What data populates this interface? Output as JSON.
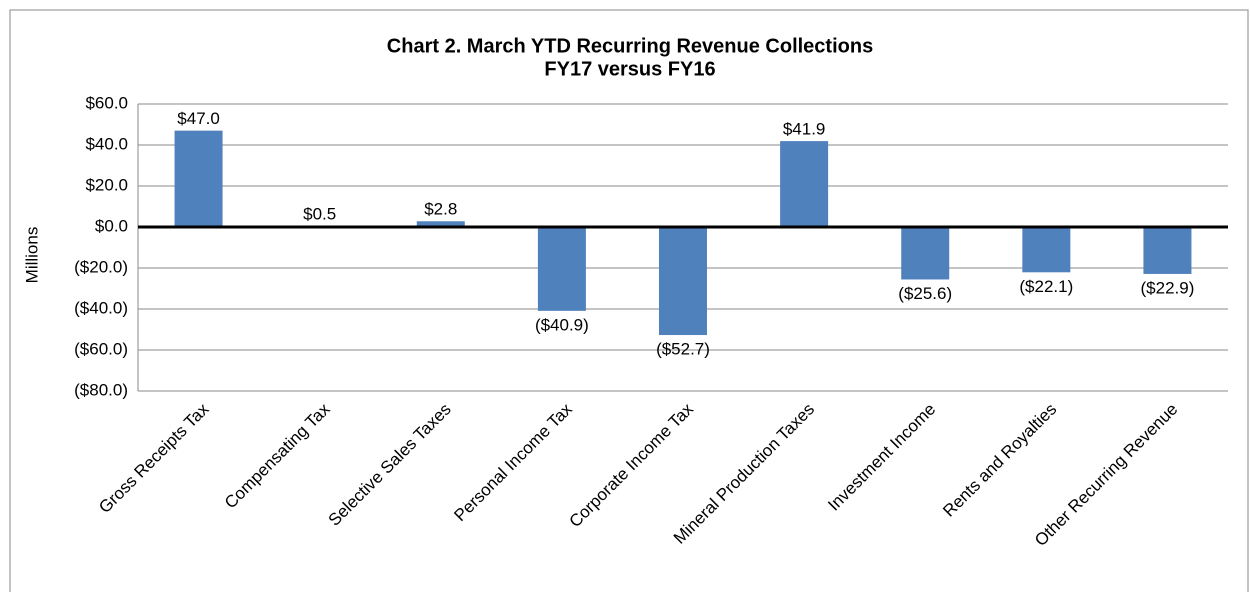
{
  "chart_data": {
    "type": "bar",
    "title": "Chart 2. March YTD Recurring Revenue  Collections",
    "subtitle": "FY17 versus FY16",
    "y_label": "Millions",
    "categories": [
      "Gross Receipts Tax",
      "Compensating Tax",
      "Selective Sales Taxes",
      "Personal Income Tax",
      "Corporate Income Tax",
      "Mineral Production Taxes",
      "Investment Income",
      "Rents and Royalties",
      "Other Recurring Revenue"
    ],
    "values": [
      47.0,
      0.5,
      2.8,
      -40.9,
      -52.7,
      41.9,
      -25.6,
      -22.1,
      -22.9
    ],
    "value_labels": [
      "$47.0",
      "$0.5",
      "$2.8",
      "($40.9)",
      "($52.7)",
      "$41.9",
      "($25.6)",
      "($22.1)",
      "($22.9)"
    ],
    "color": "#4f81bd",
    "ylim": [
      -80,
      60
    ],
    "yticks": [
      {
        "value": -80,
        "label": "($80.0)"
      },
      {
        "value": -60,
        "label": "($60.0)"
      },
      {
        "value": -40,
        "label": "($40.0)"
      },
      {
        "value": -20,
        "label": "($20.0)"
      },
      {
        "value": 0,
        "label": "$0.0"
      },
      {
        "value": 20,
        "label": "$20.0"
      },
      {
        "value": 40,
        "label": "$40.0"
      },
      {
        "value": 60,
        "label": "$60.0"
      }
    ],
    "grid": true
  }
}
